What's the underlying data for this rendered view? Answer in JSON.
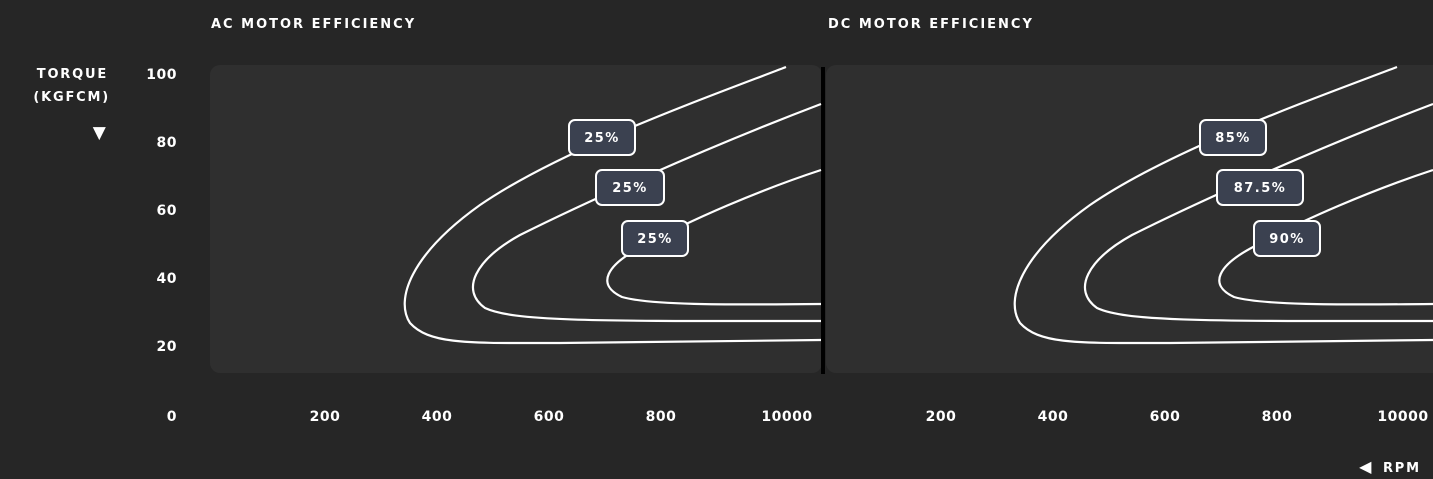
{
  "chart_data": [
    {
      "type": "line",
      "title": "AC MOTOR EFFICIENCY",
      "xlabel": "RPM",
      "ylabel": "TORQUE (KGFCM)",
      "x_ticks": [
        "200",
        "400",
        "600",
        "800",
        "10000"
      ],
      "y_ticks": [
        "0",
        "20",
        "40",
        "60",
        "80",
        "100"
      ],
      "ylim": [
        0,
        100
      ],
      "series": [
        {
          "name": "25%",
          "label": "25%"
        },
        {
          "name": "25%",
          "label": "25%"
        },
        {
          "name": "25%",
          "label": "25%"
        }
      ]
    },
    {
      "type": "line",
      "title": "DC MOTOR EFFICIENCY",
      "xlabel": "RPM",
      "ylabel": "TORQUE (KGFCM)",
      "x_ticks": [
        "200",
        "400",
        "600",
        "800",
        "10000"
      ],
      "y_ticks": [
        "0",
        "20",
        "40",
        "60",
        "80",
        "100"
      ],
      "ylim": [
        0,
        100
      ],
      "series": [
        {
          "name": "85%",
          "label": "85%"
        },
        {
          "name": "87.5%",
          "label": "87.5%"
        },
        {
          "name": "90%",
          "label": "90%"
        }
      ]
    }
  ],
  "axis": {
    "y_title_line1": "TORQUE",
    "y_title_line2": "(KGFCM)",
    "y_arrow": "▼",
    "x_arrow": "◀",
    "x_title": "RPM"
  },
  "colors": {
    "background": "#262626",
    "plot_area": "#2f2f2f",
    "curve": "#ffffff",
    "tag_fill": "#3b4150",
    "divider": "#000000"
  }
}
